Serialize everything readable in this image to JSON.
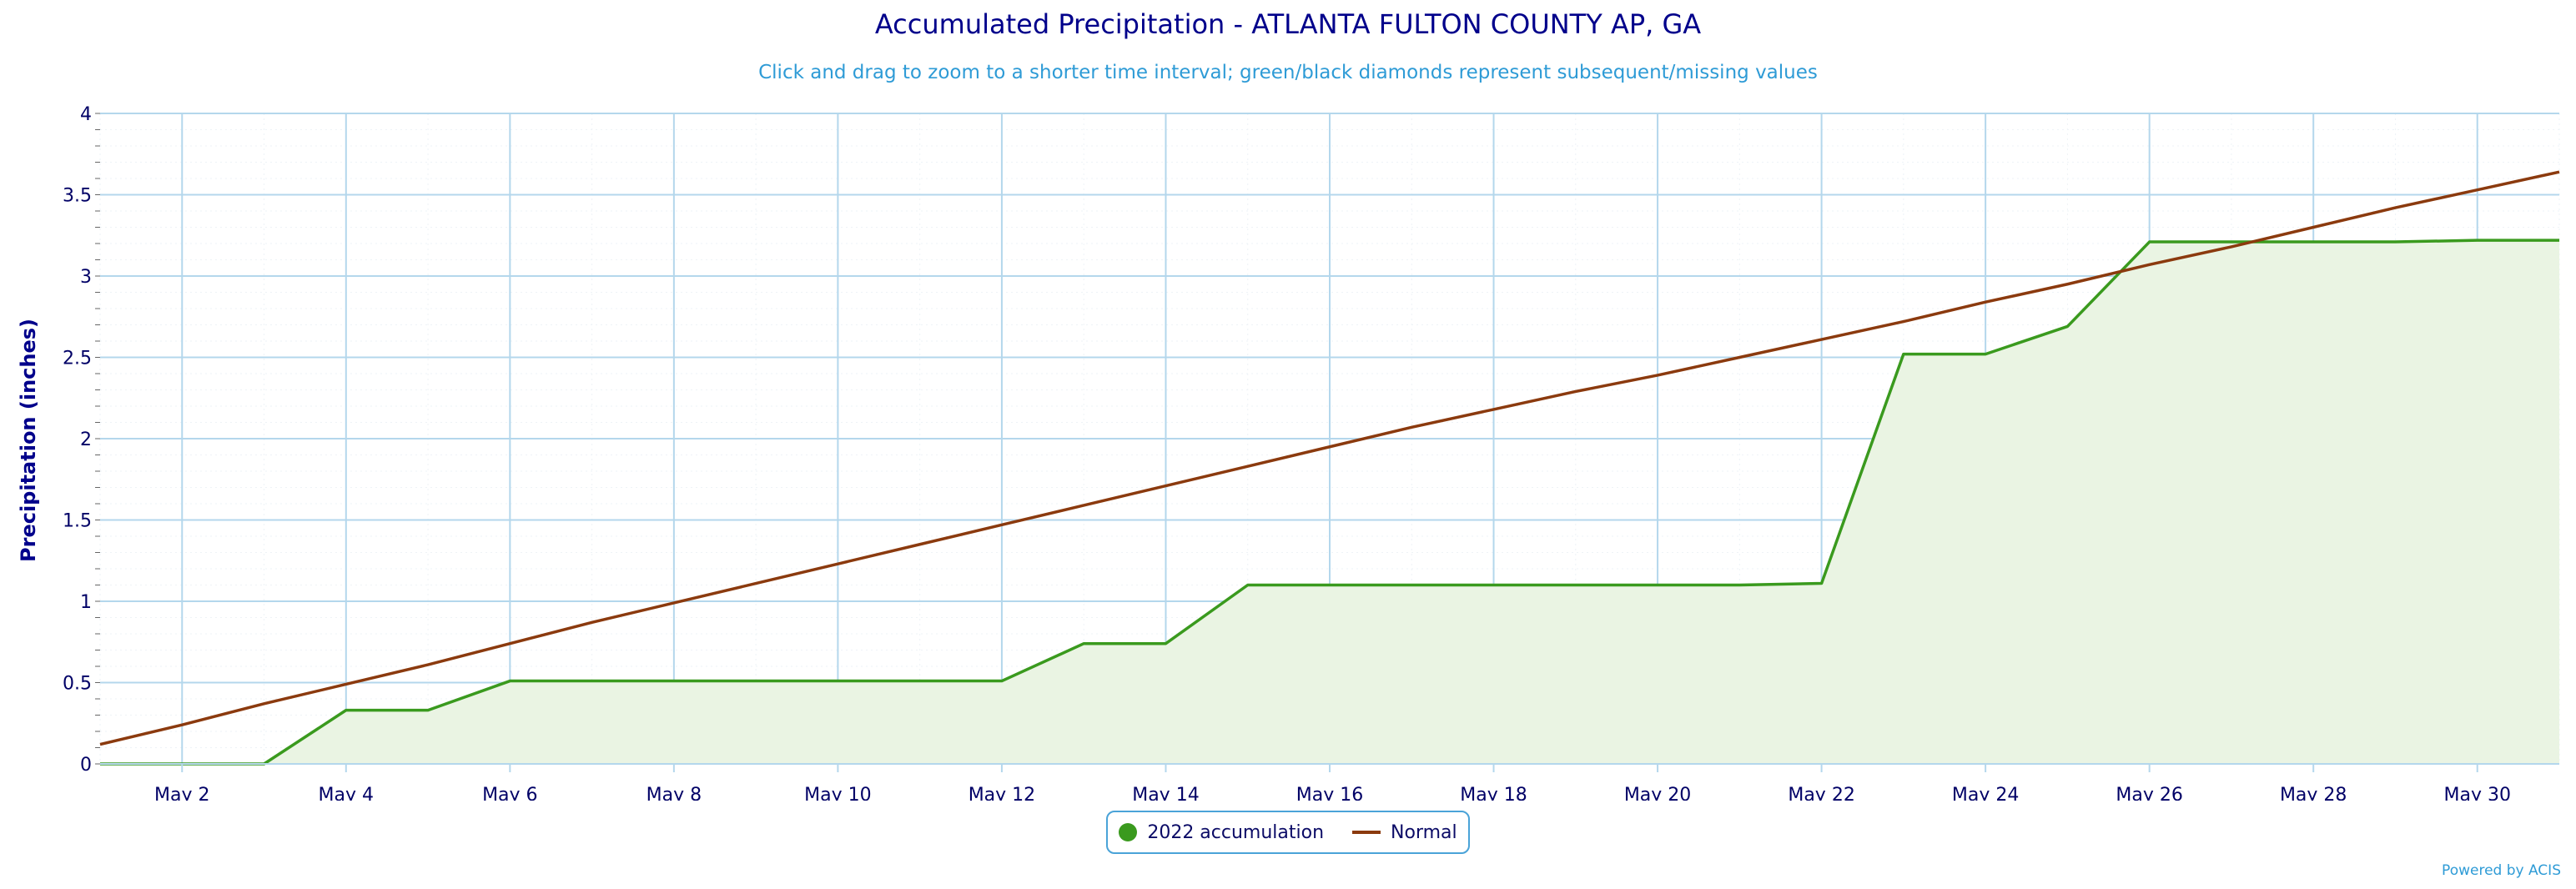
{
  "title": "Accumulated Precipitation - ATLANTA FULTON COUNTY AP, GA",
  "subtitle": "Click and drag to zoom to a shorter time interval; green/black diamonds represent subsequent/missing values",
  "credit": "Powered by ACIS",
  "colors": {
    "accumulation": "#3a9a1e",
    "accumulation_fill": "#eaf4e3",
    "normal": "#8b3a0e",
    "grid": "#b4d7ec",
    "title": "#00008b",
    "subtitle": "#2e9bd6"
  },
  "chart_data": {
    "type": "line",
    "title": "Accumulated Precipitation - ATLANTA FULTON COUNTY AP, GA",
    "ylabel": "Precipitation (inches)",
    "xlabel": "",
    "x": [
      "May 1",
      "May 2",
      "May 3",
      "May 4",
      "May 5",
      "May 6",
      "May 7",
      "May 8",
      "May 9",
      "May 10",
      "May 11",
      "May 12",
      "May 13",
      "May 14",
      "May 15",
      "May 16",
      "May 17",
      "May 18",
      "May 19",
      "May 20",
      "May 21",
      "May 22",
      "May 23",
      "May 24",
      "May 25",
      "May 26",
      "May 27",
      "May 28",
      "May 29",
      "May 30",
      "May 31"
    ],
    "xticks": [
      "May 2",
      "May 4",
      "May 6",
      "May 8",
      "May 10",
      "May 12",
      "May 14",
      "May 16",
      "May 18",
      "May 20",
      "May 22",
      "May 24",
      "May 26",
      "May 28",
      "May 30"
    ],
    "ylim": [
      0,
      4
    ],
    "yticks": [
      "0",
      "0.5",
      "1",
      "1.5",
      "2",
      "2.5",
      "3",
      "3.5",
      "4"
    ],
    "grid": true,
    "legend_position": "bottom-center",
    "series": [
      {
        "name": "2022 accumulation",
        "values": [
          0,
          0,
          0,
          0.33,
          0.33,
          0.51,
          0.51,
          0.51,
          0.51,
          0.51,
          0.51,
          0.51,
          0.74,
          0.74,
          1.1,
          1.1,
          1.1,
          1.1,
          1.1,
          1.1,
          1.1,
          1.11,
          2.52,
          2.52,
          2.69,
          3.21,
          3.21,
          3.21,
          3.21,
          3.22,
          3.22
        ]
      },
      {
        "name": "Normal",
        "values": [
          0.12,
          0.24,
          0.37,
          0.49,
          0.61,
          0.74,
          0.87,
          0.99,
          1.11,
          1.23,
          1.35,
          1.47,
          1.59,
          1.71,
          1.83,
          1.95,
          2.07,
          2.18,
          2.29,
          2.39,
          2.5,
          2.61,
          2.72,
          2.84,
          2.95,
          3.07,
          3.18,
          3.3,
          3.42,
          3.53,
          3.64
        ]
      }
    ]
  }
}
